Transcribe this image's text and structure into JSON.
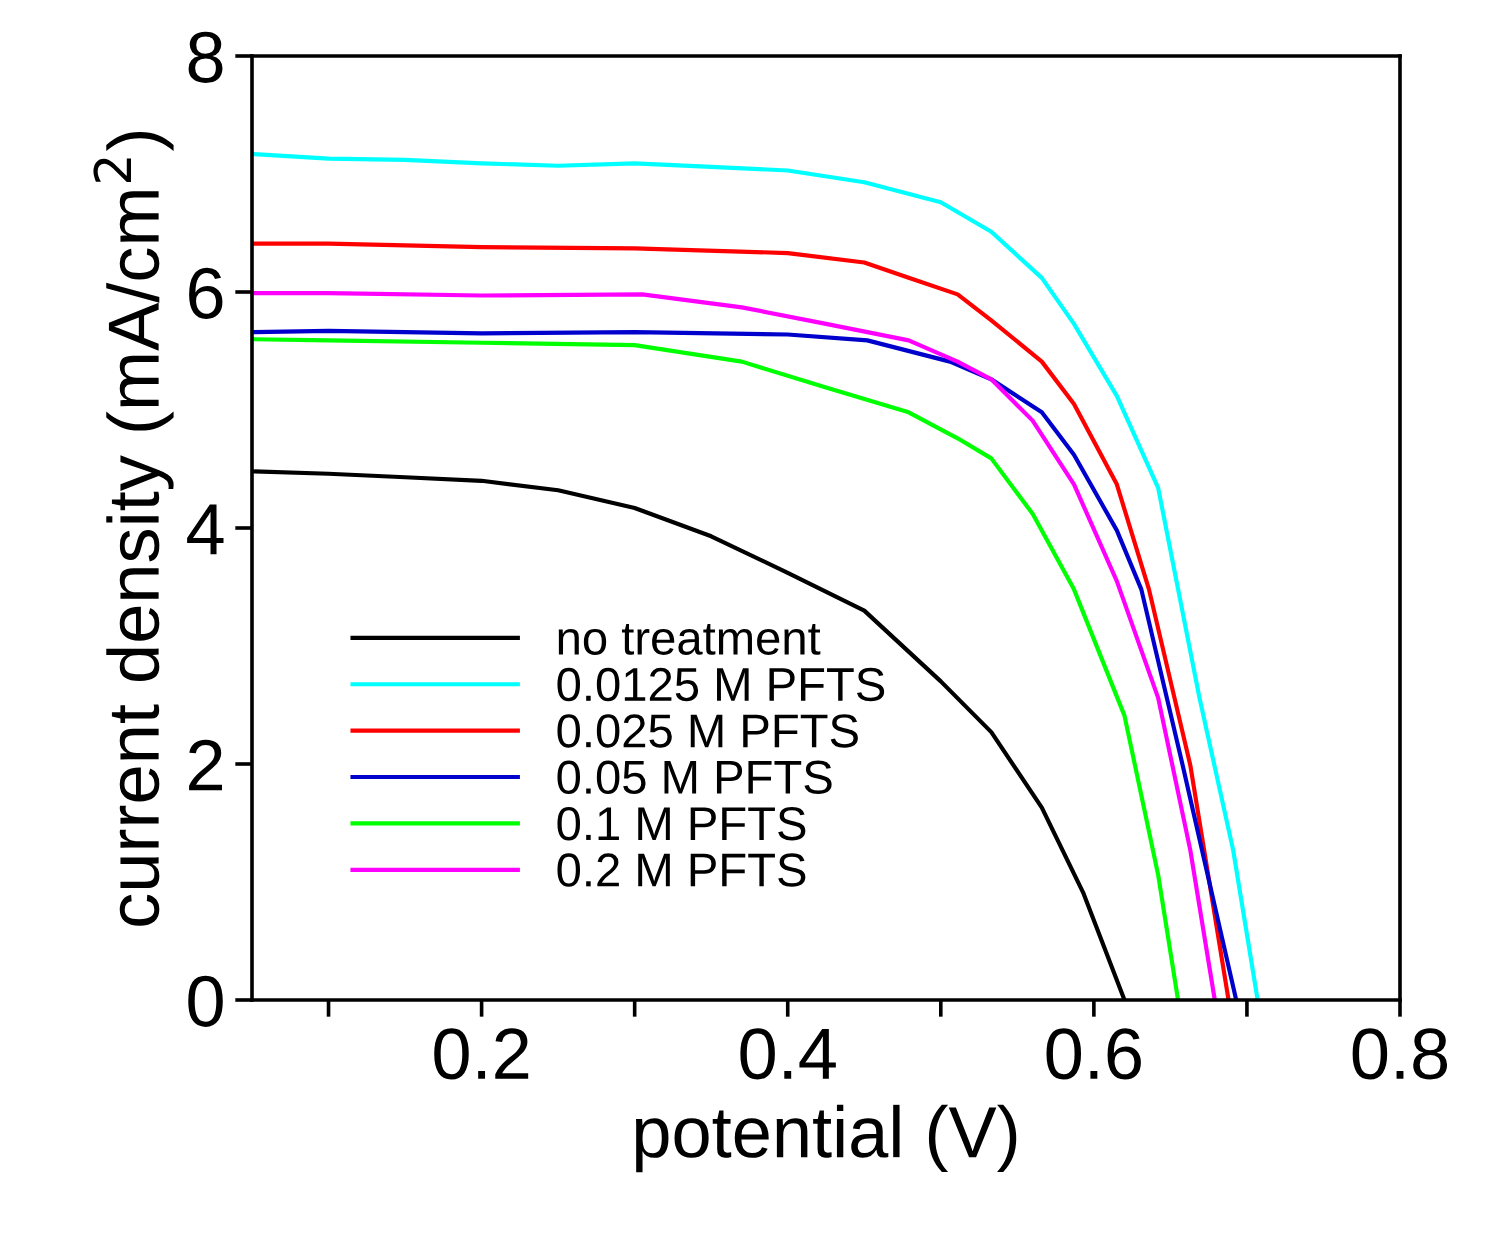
{
  "chart_data": {
    "type": "line",
    "xlabel": "potential (V)",
    "ylabel": "current density (mA/cm$^{2}$)",
    "xlim": [
      0.05,
      0.8
    ],
    "ylim": [
      0,
      8
    ],
    "xticks": [
      {
        "value": 0.1,
        "label": null
      },
      0.2,
      {
        "value": 0.3,
        "label": null
      },
      0.4,
      {
        "value": 0.5,
        "label": null
      },
      0.6,
      {
        "value": 0.7,
        "label": null
      },
      0.8
    ],
    "yticks": [
      0,
      2,
      4,
      6,
      8
    ],
    "grid": false,
    "legend": "bottom left",
    "line_style": "solid",
    "marker": "none",
    "series": [
      {
        "name": "no treatment",
        "color": "#000000",
        "x": [
          0.05,
          0.1,
          0.15,
          0.2,
          0.25,
          0.3,
          0.35,
          0.4,
          0.45,
          0.5,
          0.533,
          0.566,
          0.593,
          0.62
        ],
        "values": [
          4.48,
          4.46,
          4.43,
          4.4,
          4.32,
          4.17,
          3.93,
          3.62,
          3.3,
          2.7,
          2.27,
          1.63,
          0.91,
          0
        ]
      },
      {
        "name": "0.0125 M PFTS",
        "color": "#00ffff",
        "x": [
          0.05,
          0.1,
          0.15,
          0.2,
          0.25,
          0.3,
          0.35,
          0.4,
          0.45,
          0.5,
          0.533,
          0.566,
          0.587,
          0.615,
          0.642,
          0.669,
          0.691,
          0.707
        ],
        "values": [
          7.17,
          7.13,
          7.12,
          7.09,
          7.07,
          7.09,
          7.06,
          7.03,
          6.93,
          6.76,
          6.51,
          6.12,
          5.73,
          5.12,
          4.34,
          2.56,
          1.27,
          0
        ]
      },
      {
        "name": "0.025 M PFTS",
        "color": "#ff0000",
        "x": [
          0.05,
          0.1,
          0.2,
          0.3,
          0.4,
          0.45,
          0.479,
          0.511,
          0.533,
          0.566,
          0.587,
          0.615,
          0.636,
          0.663,
          0.688
        ],
        "values": [
          6.41,
          6.41,
          6.38,
          6.37,
          6.33,
          6.25,
          6.12,
          5.98,
          5.76,
          5.41,
          5.05,
          4.37,
          3.48,
          1.99,
          0
        ]
      },
      {
        "name": "0.05 M PFTS",
        "color": "#0000cc",
        "x": [
          0.05,
          0.1,
          0.2,
          0.3,
          0.4,
          0.452,
          0.506,
          0.533,
          0.566,
          0.587,
          0.615,
          0.631,
          0.658,
          0.693
        ],
        "values": [
          5.66,
          5.67,
          5.65,
          5.66,
          5.64,
          5.59,
          5.41,
          5.26,
          4.98,
          4.62,
          3.98,
          3.48,
          1.99,
          0
        ]
      },
      {
        "name": "0.1 M PFTS",
        "color": "#00ff00",
        "x": [
          0.05,
          0.1,
          0.2,
          0.3,
          0.37,
          0.425,
          0.479,
          0.511,
          0.533,
          0.56,
          0.587,
          0.62,
          0.642,
          0.655
        ],
        "values": [
          5.6,
          5.59,
          5.57,
          5.55,
          5.41,
          5.19,
          4.98,
          4.76,
          4.59,
          4.12,
          3.48,
          2.41,
          1.06,
          0
        ]
      },
      {
        "name": "0.2 M PFTS",
        "color": "#ff00ff",
        "x": [
          0.05,
          0.1,
          0.2,
          0.305,
          0.37,
          0.425,
          0.479,
          0.511,
          0.533,
          0.56,
          0.587,
          0.615,
          0.642,
          0.663,
          0.679
        ],
        "values": [
          5.99,
          5.99,
          5.97,
          5.98,
          5.87,
          5.73,
          5.59,
          5.41,
          5.26,
          4.91,
          4.37,
          3.55,
          2.56,
          1.27,
          0
        ]
      }
    ]
  }
}
